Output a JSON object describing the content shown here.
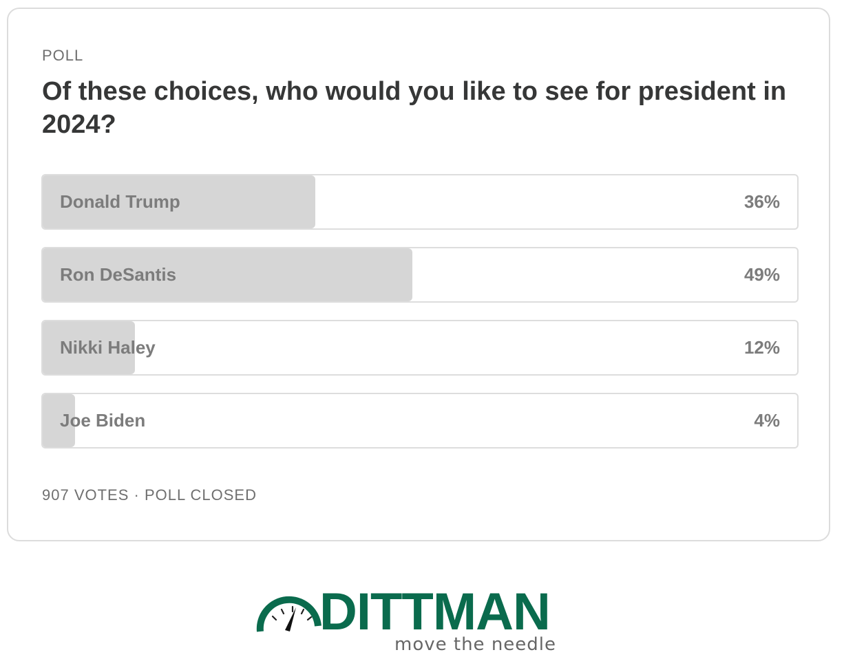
{
  "poll": {
    "label": "POLL",
    "question": "Of these choices, who would you like to see for president in 2024?",
    "options": [
      {
        "name": "Donald Trump",
        "percent_label": "36%",
        "percent": 36
      },
      {
        "name": "Ron DeSantis",
        "percent_label": "49%",
        "percent": 49
      },
      {
        "name": "Nikki Haley",
        "percent_label": "12%",
        "percent": 12
      },
      {
        "name": "Joe Biden",
        "percent_label": "4%",
        "percent": 4
      }
    ],
    "footer": "907 VOTES · POLL CLOSED"
  },
  "brand": {
    "name": "DITTMAN",
    "tagline": "move the needle",
    "color": "#0a6b4d",
    "icon": "speedometer-gauge-icon"
  },
  "colors": {
    "fill": "#d6d6d6",
    "border": "#dddddd",
    "text": "#363737",
    "muted": "#7c7c7c"
  }
}
